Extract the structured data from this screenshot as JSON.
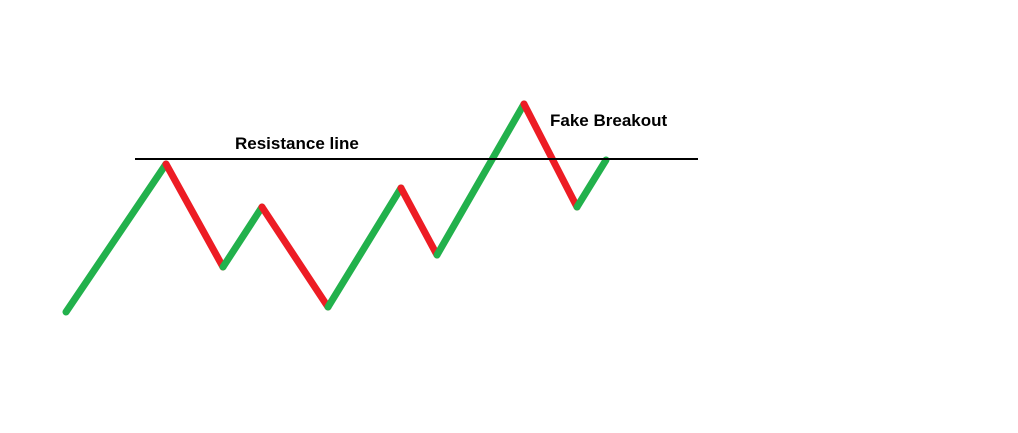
{
  "labels": {
    "resistance": "Resistance line",
    "fake_breakout": "Fake Breakout"
  },
  "colors": {
    "up": "#22b14c",
    "down": "#ed1c24",
    "line": "#000000",
    "background": "#ffffff"
  }
}
